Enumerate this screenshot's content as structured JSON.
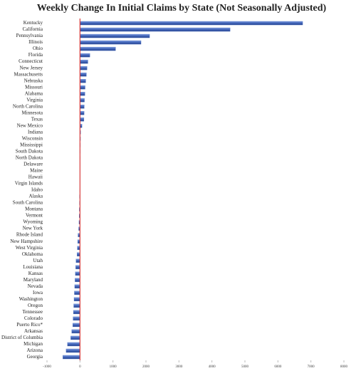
{
  "chart_data": {
    "type": "hbar",
    "title": "Weekly Change In Initial Claims by State (Not Seasonally Adjusted)",
    "categories": [
      "Kentucky",
      "California",
      "Pennsylvania",
      "Illinois",
      "Ohio",
      "Florida",
      "Connecticut",
      "New Jersey",
      "Massachusetts",
      "Nebraska",
      "Missouri",
      "Alabama",
      "Virginia",
      "North Carolina",
      "Minnesota",
      "Texas",
      "New Mexico",
      "Indiana",
      "Wisconsin",
      "Mississippi",
      "South Dakota",
      "North Dakota",
      "Delaware",
      "Maine",
      "Hawaii",
      "Virgin Islands",
      "Idaho",
      "Alaska",
      "South Carolina",
      "Montana",
      "Vermont",
      "Wyoming",
      "New York",
      "Rhode Island",
      "New Hampshire",
      "West Virginia",
      "Oklahoma",
      "Utah",
      "Louisiana",
      "Kansas",
      "Maryland",
      "Nevada",
      "Iowa",
      "Washington",
      "Oregon",
      "Tennessee",
      "Colorado",
      "Puerto Rico*",
      "Arkansas",
      "District of Columbia",
      "Michigan",
      "Arizona",
      "Georgia"
    ],
    "values": [
      6750,
      4550,
      2110,
      1850,
      1080,
      300,
      240,
      215,
      195,
      175,
      155,
      150,
      135,
      130,
      125,
      120,
      60,
      20,
      15,
      12,
      10,
      5,
      3,
      2,
      1,
      0,
      -5,
      -10,
      -15,
      -20,
      -25,
      -30,
      -40,
      -60,
      -70,
      -80,
      -90,
      -120,
      -130,
      -140,
      -150,
      -160,
      -170,
      -180,
      -190,
      -200,
      -210,
      -220,
      -250,
      -280,
      -380,
      -420,
      -520
    ],
    "color": "#4a6fc1",
    "xlim": [
      -1000,
      8000
    ],
    "xticks": [
      -1000,
      0,
      1000,
      2000,
      3000,
      4000,
      5000,
      6000,
      7000,
      8000
    ]
  }
}
